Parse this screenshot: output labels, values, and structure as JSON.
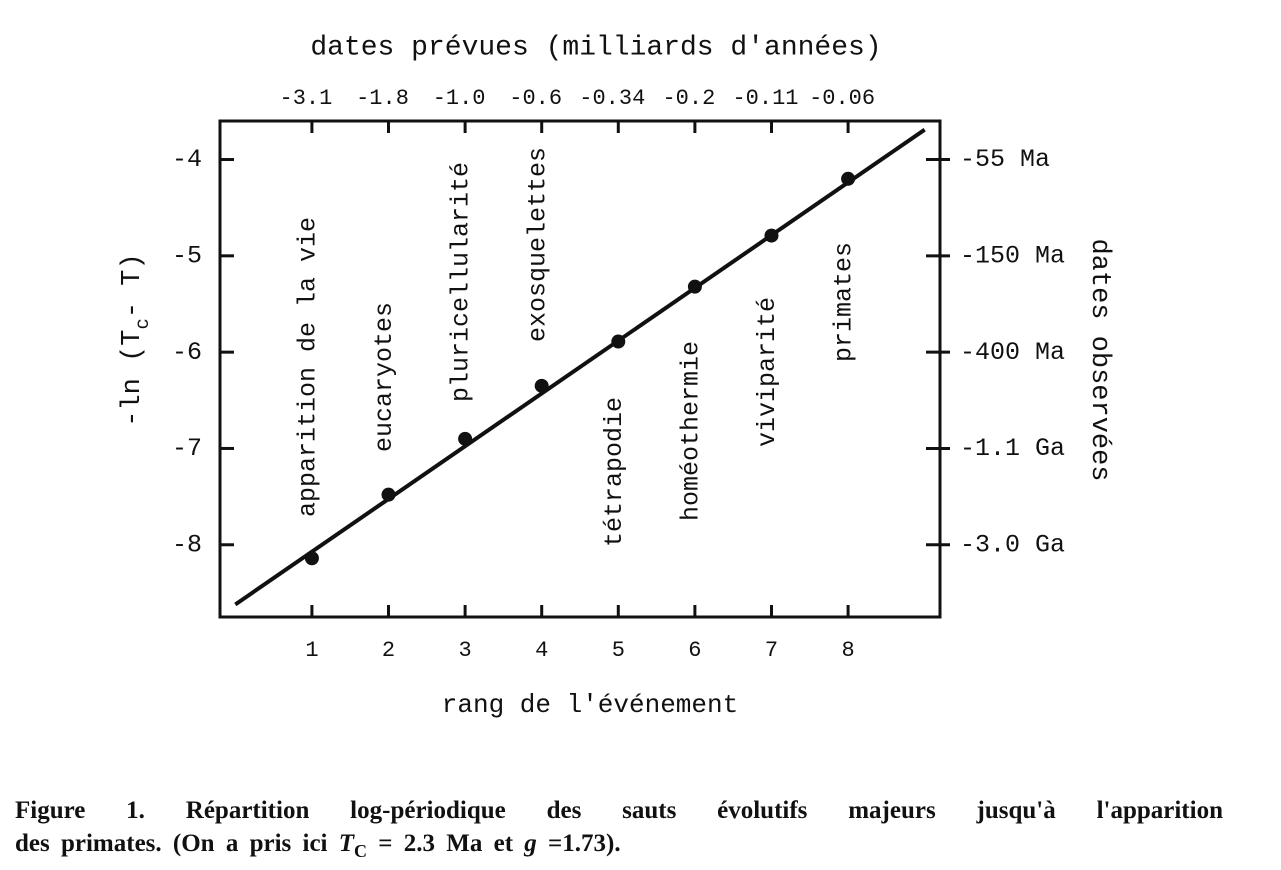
{
  "chart_data": {
    "type": "scatter",
    "title": "dates prévues (milliards d'années)",
    "x_label": "rang de l'événement",
    "y_label": {
      "before": "-ln (T",
      "subscript": "c",
      "after": "- T)"
    },
    "y2_label": "dates observées",
    "xlim": [
      -0.2,
      9.2
    ],
    "xticks": [
      1,
      2,
      3,
      4,
      5,
      6,
      7,
      8
    ],
    "x2ticks": [
      {
        "value": 1,
        "label": "-3.1"
      },
      {
        "value": 2,
        "label": "-1.8"
      },
      {
        "value": 3,
        "label": "-1.0"
      },
      {
        "value": 4,
        "label": "-0.6"
      },
      {
        "value": 5,
        "label": "-0.34"
      },
      {
        "value": 6,
        "label": "-0.2"
      },
      {
        "value": 7,
        "label": "-0.11"
      },
      {
        "value": 8,
        "label": "-0.06"
      }
    ],
    "ylim": [
      -8.75,
      -3.6
    ],
    "yticks": [
      -4,
      -5,
      -6,
      -7,
      -8
    ],
    "y2lim": [
      -8.75,
      -3.6
    ],
    "y2ticks": [
      {
        "value": -4,
        "label": "-55 Ma"
      },
      {
        "value": -5,
        "label": "-150 Ma"
      },
      {
        "value": -6,
        "label": "-400 Ma"
      },
      {
        "value": -7,
        "label": "-1.1 Ga"
      },
      {
        "value": -8,
        "label": "-3.0 Ga"
      }
    ],
    "color": "#111111",
    "points": {
      "x": [
        1,
        2,
        3,
        4,
        5,
        6,
        7,
        8
      ],
      "values": [
        -8.14,
        -7.48,
        -6.9,
        -6.35,
        -5.89,
        -5.32,
        -4.79,
        -4.2
      ]
    },
    "fit_line": {
      "x": [
        0,
        9
      ],
      "values": [
        -8.62,
        -3.69
      ]
    },
    "annotations": [
      "apparition de la vie",
      "eucaryotes",
      "pluricellularité",
      "exosquelettes",
      "tétrapodie",
      "homéothermie",
      "viviparité",
      "primates"
    ]
  },
  "caption": {
    "line_1": "Figure 1. Répartition log-périodique des sauts évolutifs majeurs jusqu'à l'apparition",
    "line_2_start": "des primates. (On a pris ici ",
    "symbol_t": "T",
    "symbol_t_subscript": "C",
    "line_2_middle": " = 2.3 Ma et ",
    "symbol_g": "g",
    "line_2_end": " =1.73)."
  }
}
